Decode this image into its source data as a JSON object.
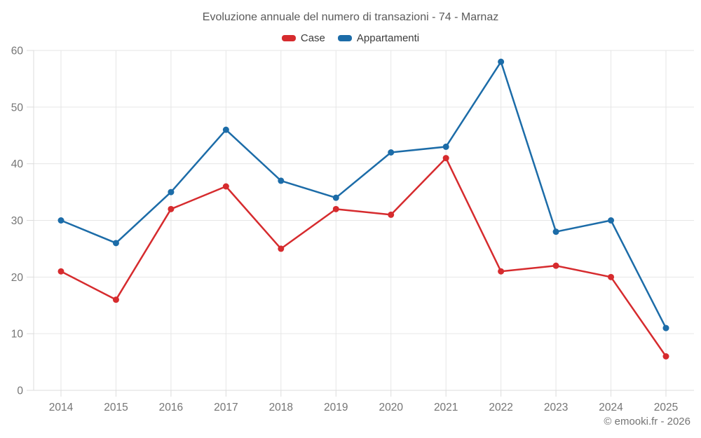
{
  "chart_data": {
    "type": "line",
    "title": "Evoluzione annuale del numero di transazioni - 74 - Marnaz",
    "categories": [
      "2014",
      "2015",
      "2016",
      "2017",
      "2018",
      "2019",
      "2020",
      "2021",
      "2022",
      "2023",
      "2024",
      "2025"
    ],
    "series": [
      {
        "name": "Case",
        "color": "#d62b2e",
        "values": [
          21,
          16,
          32,
          36,
          25,
          32,
          31,
          41,
          21,
          22,
          20,
          6
        ]
      },
      {
        "name": "Appartamenti",
        "color": "#1c6ca8",
        "values": [
          30,
          26,
          35,
          46,
          37,
          34,
          42,
          43,
          58,
          28,
          30,
          11
        ]
      }
    ],
    "xlabel": "",
    "ylabel": "",
    "ylim": [
      0,
      60
    ],
    "yticks": [
      0,
      10,
      20,
      30,
      40,
      50,
      60
    ],
    "grid": true,
    "legend_position": "top",
    "grid_color": "#e6e6e6",
    "axis_color": "#dcdcdc",
    "tick_label_color": "#757575",
    "footer": "© emooki.fr - 2026"
  }
}
